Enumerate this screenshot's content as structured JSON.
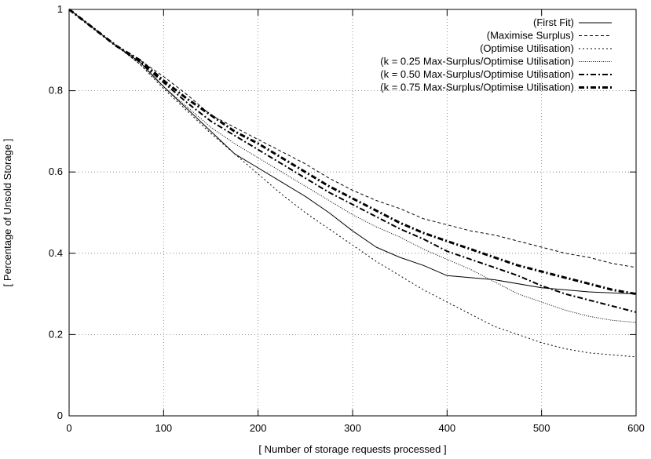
{
  "chart_data": {
    "type": "line",
    "title": "",
    "xlabel": "[ Number of storage requests processed ]",
    "ylabel": "[ Percentage of Unsold Storage ]",
    "xlim": [
      0,
      600
    ],
    "ylim": [
      0,
      1
    ],
    "xticks": [
      0,
      100,
      200,
      300,
      400,
      500,
      600
    ],
    "yticks": [
      0,
      0.2,
      0.4,
      0.6,
      0.8,
      1
    ],
    "xtick_labels": [
      "0",
      "100",
      "200",
      "300",
      "400",
      "500",
      "600"
    ],
    "ytick_labels": [
      "0",
      "0.2",
      "0.4",
      "0.6",
      "0.8",
      "1"
    ],
    "grid": true,
    "legend_position": "top-right",
    "series": [
      {
        "name": "(First Fit)",
        "style": "solid",
        "x": [
          0,
          25,
          50,
          75,
          100,
          125,
          150,
          175,
          200,
          225,
          250,
          275,
          300,
          325,
          350,
          375,
          400,
          450,
          500,
          550,
          600
        ],
        "y": [
          1.0,
          0.955,
          0.91,
          0.87,
          0.81,
          0.755,
          0.7,
          0.645,
          0.61,
          0.575,
          0.54,
          0.5,
          0.455,
          0.415,
          0.39,
          0.37,
          0.345,
          0.335,
          0.315,
          0.305,
          0.3
        ]
      },
      {
        "name": "(Maximise Surplus)",
        "style": "dashed",
        "x": [
          0,
          25,
          50,
          75,
          100,
          125,
          150,
          175,
          200,
          225,
          250,
          275,
          300,
          325,
          350,
          375,
          400,
          425,
          450,
          475,
          500,
          525,
          550,
          575,
          600
        ],
        "y": [
          1.0,
          0.955,
          0.91,
          0.875,
          0.835,
          0.79,
          0.74,
          0.71,
          0.68,
          0.65,
          0.62,
          0.585,
          0.555,
          0.53,
          0.51,
          0.485,
          0.47,
          0.455,
          0.445,
          0.43,
          0.415,
          0.4,
          0.39,
          0.375,
          0.365
        ]
      },
      {
        "name": "(Optimise Utilisation)",
        "style": "dotted",
        "x": [
          0,
          25,
          50,
          75,
          100,
          125,
          150,
          175,
          200,
          225,
          250,
          275,
          300,
          325,
          350,
          375,
          400,
          425,
          450,
          475,
          500,
          525,
          550,
          575,
          600
        ],
        "y": [
          1.0,
          0.955,
          0.91,
          0.865,
          0.805,
          0.75,
          0.695,
          0.645,
          0.595,
          0.545,
          0.5,
          0.46,
          0.42,
          0.38,
          0.345,
          0.31,
          0.28,
          0.25,
          0.22,
          0.2,
          0.18,
          0.165,
          0.155,
          0.15,
          0.145
        ]
      },
      {
        "name": "(k = 0.25 Max-Surplus/Optimise Utilisation)",
        "style": "fine-dotted",
        "x": [
          0,
          25,
          50,
          75,
          100,
          125,
          150,
          175,
          200,
          225,
          250,
          275,
          300,
          325,
          350,
          375,
          400,
          425,
          450,
          475,
          500,
          525,
          550,
          575,
          600
        ],
        "y": [
          1.0,
          0.955,
          0.91,
          0.865,
          0.81,
          0.76,
          0.71,
          0.67,
          0.635,
          0.6,
          0.565,
          0.53,
          0.495,
          0.465,
          0.44,
          0.41,
          0.385,
          0.36,
          0.33,
          0.3,
          0.28,
          0.26,
          0.245,
          0.235,
          0.23
        ]
      },
      {
        "name": "(k = 0.50 Max-Surplus/Optimise Utilisation)",
        "style": "dash-dot",
        "x": [
          0,
          25,
          50,
          75,
          100,
          125,
          150,
          175,
          200,
          225,
          250,
          275,
          300,
          325,
          350,
          375,
          400,
          425,
          450,
          475,
          500,
          525,
          550,
          575,
          600
        ],
        "y": [
          1.0,
          0.955,
          0.91,
          0.87,
          0.82,
          0.77,
          0.725,
          0.69,
          0.655,
          0.62,
          0.585,
          0.55,
          0.52,
          0.49,
          0.46,
          0.435,
          0.405,
          0.385,
          0.365,
          0.345,
          0.32,
          0.3,
          0.285,
          0.27,
          0.255
        ]
      },
      {
        "name": "(k = 0.75 Max-Surplus/Optimise Utilisation)",
        "style": "thick-dash-dot",
        "x": [
          0,
          25,
          50,
          75,
          100,
          125,
          150,
          175,
          200,
          225,
          250,
          275,
          300,
          325,
          350,
          375,
          400,
          425,
          450,
          475,
          500,
          525,
          550,
          575,
          600
        ],
        "y": [
          1.0,
          0.955,
          0.91,
          0.875,
          0.825,
          0.78,
          0.74,
          0.7,
          0.67,
          0.635,
          0.6,
          0.565,
          0.535,
          0.505,
          0.475,
          0.45,
          0.43,
          0.41,
          0.39,
          0.37,
          0.355,
          0.34,
          0.325,
          0.31,
          0.3
        ]
      }
    ]
  }
}
